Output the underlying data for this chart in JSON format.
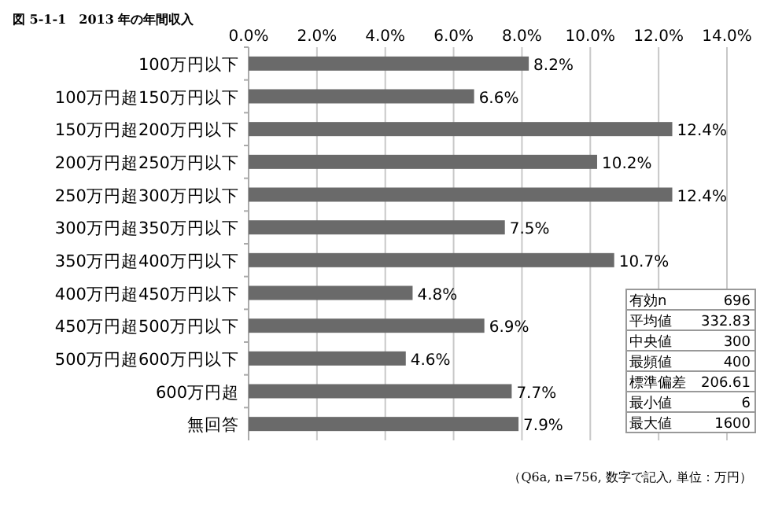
{
  "chart_data": {
    "type": "bar",
    "orientation": "horizontal",
    "title": "図 5-1-1　2013 年の年間収入",
    "categories": [
      "100万円以下",
      "100万円超150万円以下",
      "150万円超200万円以下",
      "200万円超250万円以下",
      "250万円超300万円以下",
      "300万円超350万円以下",
      "350万円超400万円以下",
      "400万円超450万円以下",
      "450万円超500万円以下",
      "500万円超600万円以下",
      "600万円超",
      "無回答"
    ],
    "values": [
      8.2,
      6.6,
      12.4,
      10.2,
      12.4,
      7.5,
      10.7,
      4.8,
      6.9,
      4.6,
      7.7,
      7.9
    ],
    "value_labels": [
      "8.2%",
      "6.6%",
      "12.4%",
      "10.2%",
      "12.4%",
      "7.5%",
      "10.7%",
      "4.8%",
      "6.9%",
      "4.6%",
      "7.7%",
      "7.9%"
    ],
    "color": "#6a6a6a",
    "xlim": [
      0,
      14
    ],
    "xticks": [
      {
        "value": 0,
        "label": "0.0%"
      },
      {
        "value": 2,
        "label": "2.0%"
      },
      {
        "value": 4,
        "label": "4.0%"
      },
      {
        "value": 6,
        "label": "6.0%"
      },
      {
        "value": 8,
        "label": "8.0%"
      },
      {
        "value": 10,
        "label": "10.0%"
      },
      {
        "value": 12,
        "label": "12.0%"
      },
      {
        "value": 14,
        "label": "14.0%"
      }
    ],
    "grid": "x",
    "annotations": [
      "有効n",
      "696",
      "平均値",
      "332.83",
      "中央値",
      "300",
      "最頻値",
      "400",
      "標準偏差",
      "206.61",
      "最小値",
      "6",
      "最大値",
      "1600",
      "（Q6a, n=756, 数字で記入, 単位：万円）"
    ]
  }
}
